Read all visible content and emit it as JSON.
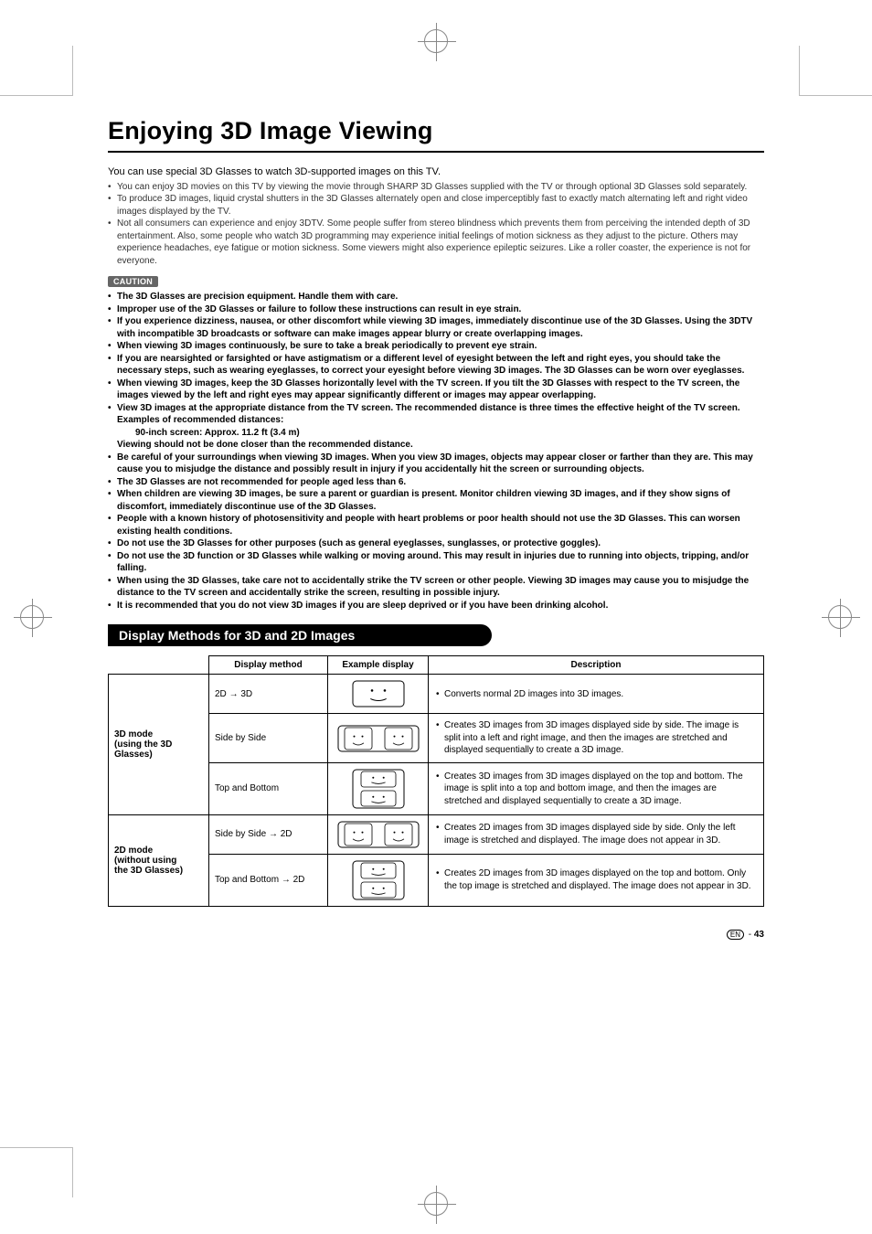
{
  "title": "Enjoying 3D Image Viewing",
  "intro_lead": "You can use special 3D Glasses to watch 3D-supported images on this TV.",
  "intro_bullets": [
    "You can enjoy 3D movies on this TV by viewing the movie through SHARP 3D Glasses supplied with the TV or through optional 3D Glasses sold separately.",
    "To produce 3D images, liquid crystal shutters in the 3D Glasses alternately open and close imperceptibly fast to exactly match alternating left and right video images displayed by the TV.",
    "Not all consumers can experience and enjoy 3DTV. Some people suffer from stereo blindness which prevents them from perceiving the intended depth of 3D entertainment. Also, some people who watch 3D programming may experience initial feelings of motion sickness as they adjust to the picture. Others may experience headaches, eye fatigue or motion sickness. Some viewers might also experience epileptic seizures. Like a roller coaster, the experience is not for everyone."
  ],
  "caution_label": "CAUTION",
  "cautions": [
    {
      "text": "The 3D Glasses are precision equipment. Handle them with care."
    },
    {
      "text": "Improper use of the 3D Glasses or failure to follow these instructions can result in eye strain."
    },
    {
      "text": "If you experience dizziness, nausea, or other discomfort while viewing 3D images, immediately discontinue use of the 3D Glasses. Using the 3DTV with incompatible 3D broadcasts or software can make images appear blurry or create overlapping images."
    },
    {
      "text": "When viewing 3D images continuously, be sure to take a break periodically to prevent eye strain."
    },
    {
      "text": "If you are nearsighted or farsighted or have astigmatism or a different level of eyesight between the left and right eyes, you should take the necessary steps, such as wearing eyeglasses, to correct your eyesight before viewing 3D images. The 3D Glasses can be worn over eyeglasses."
    },
    {
      "text": "When viewing 3D images, keep the 3D Glasses horizontally level with the TV screen. If you tilt the 3D Glasses with respect to the TV screen, the images viewed by the left and right eyes may appear significantly different or images may appear overlapping."
    },
    {
      "text": "View 3D images at the appropriate distance from the TV screen. The recommended distance is three times the effective height of the TV screen.",
      "subs": [
        {
          "text": "Examples of recommended distances:",
          "indent": 1
        },
        {
          "text": "90-inch screen: Approx. 11.2 ft (3.4 m)",
          "indent": 2
        },
        {
          "text": "Viewing should not be done closer than the recommended distance.",
          "indent": 1
        }
      ]
    },
    {
      "text": "Be careful of your surroundings when viewing 3D images. When you view 3D images, objects may appear closer or farther than they are. This may cause you to misjudge the distance and possibly result in injury if you accidentally hit the screen or surrounding objects."
    },
    {
      "text": "The 3D Glasses are not recommended for people aged less than 6."
    },
    {
      "text": "When children are viewing 3D images, be sure a parent or guardian is present. Monitor children viewing 3D images, and if they show signs of discomfort, immediately discontinue use of the 3D Glasses."
    },
    {
      "text": "People with a known history of photosensitivity and people with heart problems or poor health should not use the 3D Glasses. This can worsen existing health conditions."
    },
    {
      "text": "Do not use the 3D Glasses for other purposes (such as general eyeglasses, sunglasses, or protective goggles)."
    },
    {
      "text": "Do not use the 3D function or 3D Glasses while walking or moving around. This may result in injuries due to running into objects, tripping, and/or falling."
    },
    {
      "text": "When using the 3D Glasses, take care not to accidentally strike the TV screen or other people. Viewing 3D images may cause you to misjudge the distance to the TV screen and accidentally strike the screen, resulting in possible injury."
    },
    {
      "text": "It is recommended that you do not view 3D images if you are sleep deprived or if you have been drinking alcohol."
    }
  ],
  "section_title": "Display Methods for 3D and 2D Images",
  "table": {
    "headers": {
      "method": "Display method",
      "example": "Example display",
      "desc": "Description"
    },
    "groups": [
      {
        "mode": "3D mode\n(using the 3D\nGlasses)",
        "rows": [
          {
            "method": "2D → 3D",
            "example": "single",
            "desc": [
              "Converts normal 2D images into 3D images."
            ]
          },
          {
            "method": "Side by Side",
            "example": "sbs",
            "desc": [
              "Creates 3D images from 3D images displayed side by side. The image is split into a left and right image, and then the images are stretched and displayed sequentially to create a 3D image."
            ]
          },
          {
            "method": "Top and Bottom",
            "example": "tab",
            "desc": [
              "Creates 3D images from 3D images displayed on the top and bottom. The image is split into a top and bottom image, and then the images are stretched and displayed sequentially to create a 3D image."
            ]
          }
        ]
      },
      {
        "mode": "2D mode\n(without using\nthe 3D Glasses)",
        "rows": [
          {
            "method": "Side by Side → 2D",
            "example": "sbs",
            "desc": [
              "Creates 2D images from 3D images displayed side by side. Only the left image is stretched and displayed. The image does not appear in 3D."
            ]
          },
          {
            "method": "Top and Bottom → 2D",
            "example": "tab",
            "desc": [
              "Creates 2D images from 3D images displayed on the top and bottom. Only the top image is stretched and displayed. The image does not appear in 3D."
            ]
          }
        ]
      }
    ]
  },
  "page_number": "43",
  "colors": {
    "text": "#000000",
    "bar_bg": "#000000",
    "bar_fg": "#ffffff",
    "caution_bg": "#666666"
  }
}
